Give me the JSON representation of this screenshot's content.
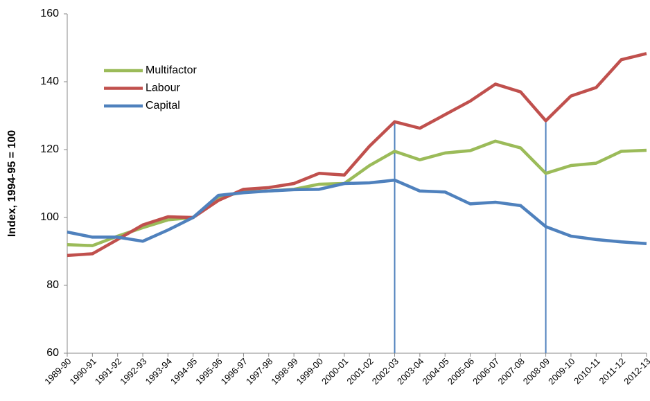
{
  "chart_data": {
    "type": "line",
    "y_label": "Index, 1994-95 = 100",
    "categories": [
      "1989-90",
      "1990-91",
      "1991-92",
      "1992-93",
      "1993-94",
      "1994-95",
      "1995-96",
      "1996-97",
      "1997-98",
      "1998-99",
      "1999-00",
      "2000-01",
      "2001-02",
      "2002-03",
      "2003-04",
      "2004-05",
      "2005-06",
      "2006-07",
      "2007-08",
      "2008-09",
      "2009-10",
      "2010-11",
      "2011-12",
      "2012-13"
    ],
    "series": [
      {
        "name": "Multifactor",
        "color": "#9bbb59",
        "values": [
          92,
          91.7,
          94.5,
          97,
          99.3,
          100,
          106,
          107.5,
          107.8,
          108.3,
          109.8,
          110,
          115.3,
          119.5,
          117,
          119,
          119.7,
          122.5,
          120.5,
          113,
          115.3,
          116,
          119.5,
          119.8
        ]
      },
      {
        "name": "Labour",
        "color": "#c0504d",
        "values": [
          88.8,
          89.3,
          93.5,
          97.8,
          100.2,
          100,
          105,
          108.3,
          108.8,
          110,
          113,
          112.5,
          121,
          128.2,
          126.3,
          130.3,
          134.3,
          139.3,
          137,
          128.5,
          135.8,
          138.3,
          146.5,
          148.3
        ]
      },
      {
        "name": "Capital",
        "color": "#4f81bd",
        "values": [
          95.7,
          94.2,
          94.2,
          93,
          96.3,
          100,
          106.5,
          107.3,
          107.8,
          108.2,
          108.3,
          110,
          110.2,
          111,
          107.8,
          107.5,
          104,
          104.5,
          103.5,
          97.3,
          94.5,
          93.5,
          92.8,
          92.3
        ]
      }
    ],
    "vertical_lines": [
      "2002-03",
      "2008-09"
    ],
    "vertical_line_color": "#4f81bd",
    "ylim": [
      60,
      160
    ],
    "yticks": [
      60,
      80,
      100,
      120,
      140,
      160
    ],
    "grid": false,
    "legend": "upper left"
  }
}
